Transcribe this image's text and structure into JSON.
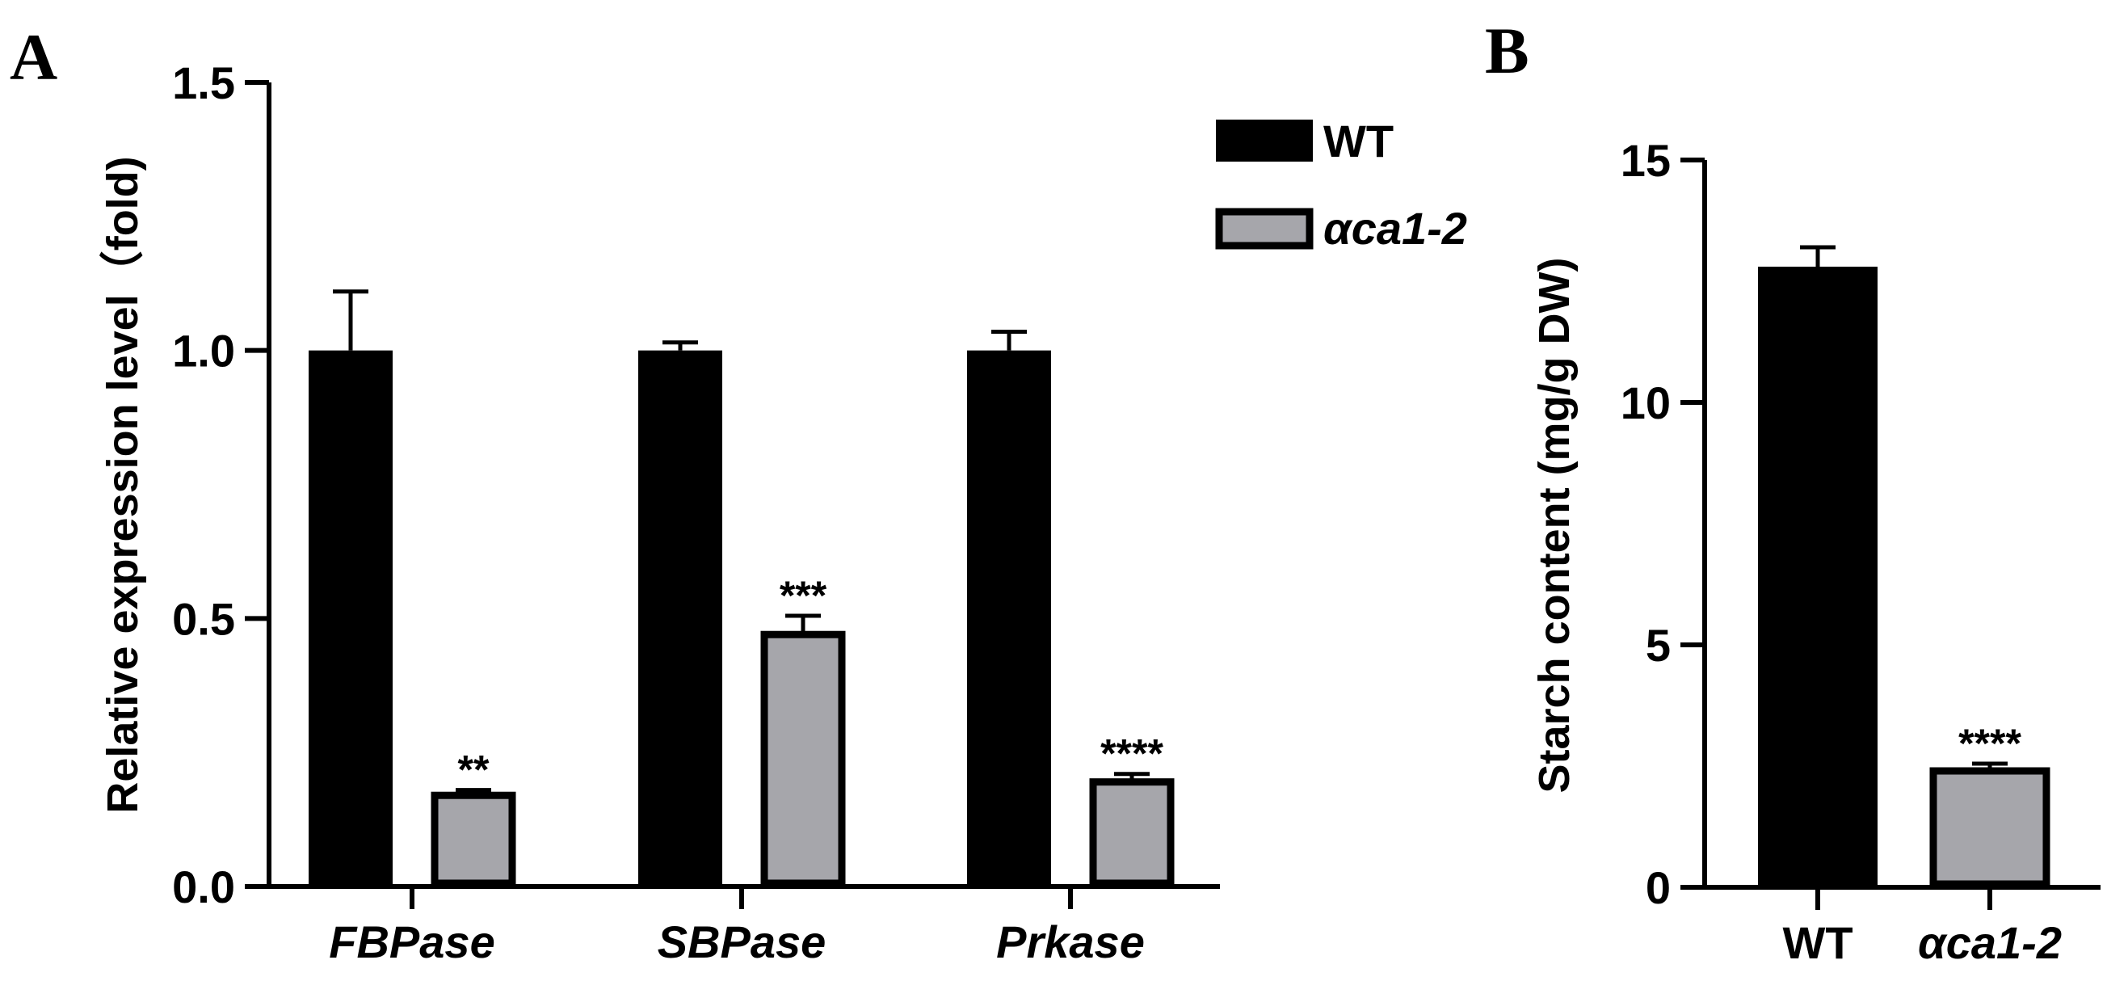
{
  "colors": {
    "wt": "#000000",
    "mutant": "#a6a6ab",
    "axis": "#000000"
  },
  "chart_data": [
    {
      "panel": "A",
      "type": "bar",
      "categories": [
        "FBPase",
        "SBPase",
        "Prkase"
      ],
      "series": [
        {
          "name": "WT",
          "values": [
            1.0,
            1.0,
            1.0
          ],
          "errors": [
            0.11,
            0.015,
            0.035
          ],
          "significance": [
            "",
            "",
            ""
          ]
        },
        {
          "name": "αca1-2",
          "values": [
            0.17,
            0.47,
            0.195
          ],
          "errors": [
            0.01,
            0.035,
            0.015
          ],
          "significance": [
            "**",
            "***",
            "****"
          ]
        }
      ],
      "ylabel": "Relative expression level（fold)",
      "ylim": [
        0,
        1.5
      ],
      "yticks": [
        0.0,
        0.5,
        1.0,
        1.5
      ],
      "ytick_labels": [
        "0.0",
        "0.5",
        "1.0",
        "1.5"
      ],
      "legend": {
        "placement": "top-right",
        "entries": [
          "WT",
          "αca1-2"
        ]
      }
    },
    {
      "panel": "B",
      "type": "bar",
      "categories": [
        "WT",
        "αca1-2"
      ],
      "values": [
        12.8,
        2.4
      ],
      "errors": [
        0.4,
        0.15
      ],
      "significance": [
        "",
        "****"
      ],
      "ylabel": "Starch content (mg/g DW)",
      "ylim": [
        0,
        15
      ],
      "yticks": [
        0,
        5,
        10,
        15
      ],
      "ytick_labels": [
        "0",
        "5",
        "10",
        "15"
      ]
    }
  ]
}
